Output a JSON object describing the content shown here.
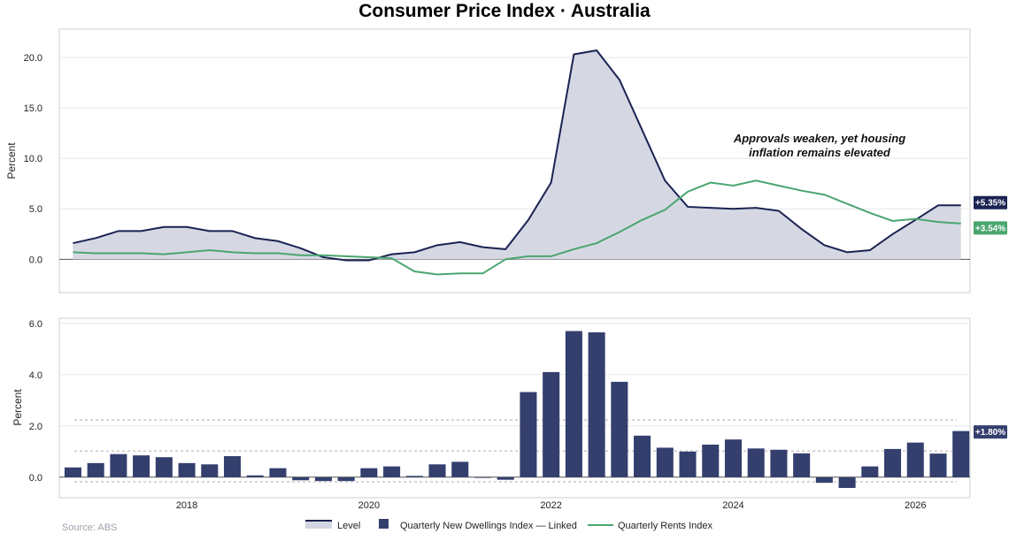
{
  "title": "Consumer Price Index · Australia",
  "source": "Source: ABS",
  "annotation": [
    "Approvals weaken, yet housing",
    "inflation remains elevated"
  ],
  "colors": {
    "level_line": "#1b2352",
    "level_fill": "#d3d6e2",
    "rents_line": "#4aa56f",
    "bars": "#343f6e",
    "grid": "#e5e7eb",
    "zero": "#555555",
    "dotted": "#c8c8c8"
  },
  "chart_data": [
    {
      "type": "area",
      "ylabel": "Percent",
      "ylim": [
        -3.3,
        22.8
      ],
      "yticks": [
        0.0,
        5.0,
        10.0,
        15.0,
        20.0
      ],
      "ytick_labels": [
        "0.0",
        "5.0",
        "10.0",
        "15.0",
        "20.0"
      ],
      "xlim": [
        2016.6,
        2026.6
      ],
      "x": [
        2016.75,
        2017.0,
        2017.25,
        2017.5,
        2017.75,
        2018.0,
        2018.25,
        2018.5,
        2018.75,
        2019.0,
        2019.25,
        2019.5,
        2019.75,
        2020.0,
        2020.25,
        2020.5,
        2020.75,
        2021.0,
        2021.25,
        2021.5,
        2021.75,
        2022.0,
        2022.25,
        2022.5,
        2022.75,
        2023.0,
        2023.25,
        2023.5,
        2023.75,
        2024.0,
        2024.25,
        2024.5,
        2024.75,
        2025.0,
        2025.25,
        2025.5,
        2025.75,
        2026.0,
        2026.25,
        2026.5
      ],
      "series": [
        {
          "name": "Level",
          "values": [
            1.6,
            2.1,
            2.8,
            2.8,
            3.2,
            3.2,
            2.8,
            2.8,
            2.1,
            1.8,
            1.1,
            0.2,
            -0.1,
            -0.1,
            0.5,
            0.7,
            1.4,
            1.7,
            1.2,
            1.0,
            3.9,
            7.6,
            20.3,
            20.7,
            17.8,
            12.8,
            7.8,
            5.2,
            5.1,
            5.0,
            5.1,
            4.8,
            3.0,
            1.4,
            0.7,
            0.9,
            2.5,
            3.9,
            5.35,
            5.35
          ]
        },
        {
          "name": "Quarterly Rents Index",
          "values": [
            0.7,
            0.6,
            0.6,
            0.6,
            0.5,
            0.7,
            0.9,
            0.7,
            0.6,
            0.6,
            0.4,
            0.4,
            0.3,
            0.2,
            0.1,
            -1.2,
            -1.5,
            -1.4,
            -1.4,
            0.0,
            0.3,
            0.3,
            1.0,
            1.6,
            2.7,
            3.9,
            4.9,
            6.7,
            7.6,
            7.3,
            7.8,
            7.3,
            6.8,
            6.4,
            5.5,
            4.6,
            3.8,
            4.0,
            3.7,
            3.54
          ]
        }
      ],
      "end_labels": [
        "+5.35%",
        "+3.54%"
      ]
    },
    {
      "type": "bar",
      "ylabel": "Percent",
      "ylim": [
        -0.8,
        6.2
      ],
      "yticks": [
        0.0,
        2.0,
        4.0,
        6.0
      ],
      "ytick_labels": [
        "0.0",
        "2.0",
        "4.0",
        "6.0"
      ],
      "xlim": [
        2016.6,
        2026.6
      ],
      "xticks": [
        2018,
        2020,
        2022,
        2024,
        2026
      ],
      "x": [
        2016.75,
        2017.0,
        2017.25,
        2017.5,
        2017.75,
        2018.0,
        2018.25,
        2018.5,
        2018.75,
        2019.0,
        2019.25,
        2019.5,
        2019.75,
        2020.0,
        2020.25,
        2020.5,
        2020.75,
        2021.0,
        2021.25,
        2021.5,
        2021.75,
        2022.0,
        2022.25,
        2022.5,
        2022.75,
        2023.0,
        2023.25,
        2023.5,
        2023.75,
        2024.0,
        2024.25,
        2024.5,
        2024.75,
        2025.0,
        2025.25,
        2025.5,
        2025.75,
        2026.0,
        2026.25,
        2026.5
      ],
      "series": [
        {
          "name": "Quarterly New Dwellings Index — Linked",
          "values": [
            0.38,
            0.55,
            0.9,
            0.85,
            0.78,
            0.55,
            0.5,
            0.82,
            0.07,
            0.35,
            -0.12,
            -0.15,
            -0.15,
            0.35,
            0.42,
            0.05,
            0.5,
            0.6,
            0.0,
            -0.1,
            3.32,
            4.1,
            5.7,
            5.65,
            3.72,
            1.62,
            1.15,
            1.0,
            1.27,
            1.47,
            1.12,
            1.07,
            0.93,
            -0.22,
            -0.42,
            0.42,
            1.1,
            1.35,
            0.92,
            1.8
          ]
        }
      ],
      "ref_lines": [
        2.23,
        1.02,
        -0.18
      ],
      "end_label": "+1.80%"
    }
  ],
  "legend": [
    {
      "label": "Level",
      "kind": "area"
    },
    {
      "label": "Quarterly New Dwellings Index — Linked",
      "kind": "square"
    },
    {
      "label": "Quarterly Rents Index",
      "kind": "line"
    }
  ]
}
